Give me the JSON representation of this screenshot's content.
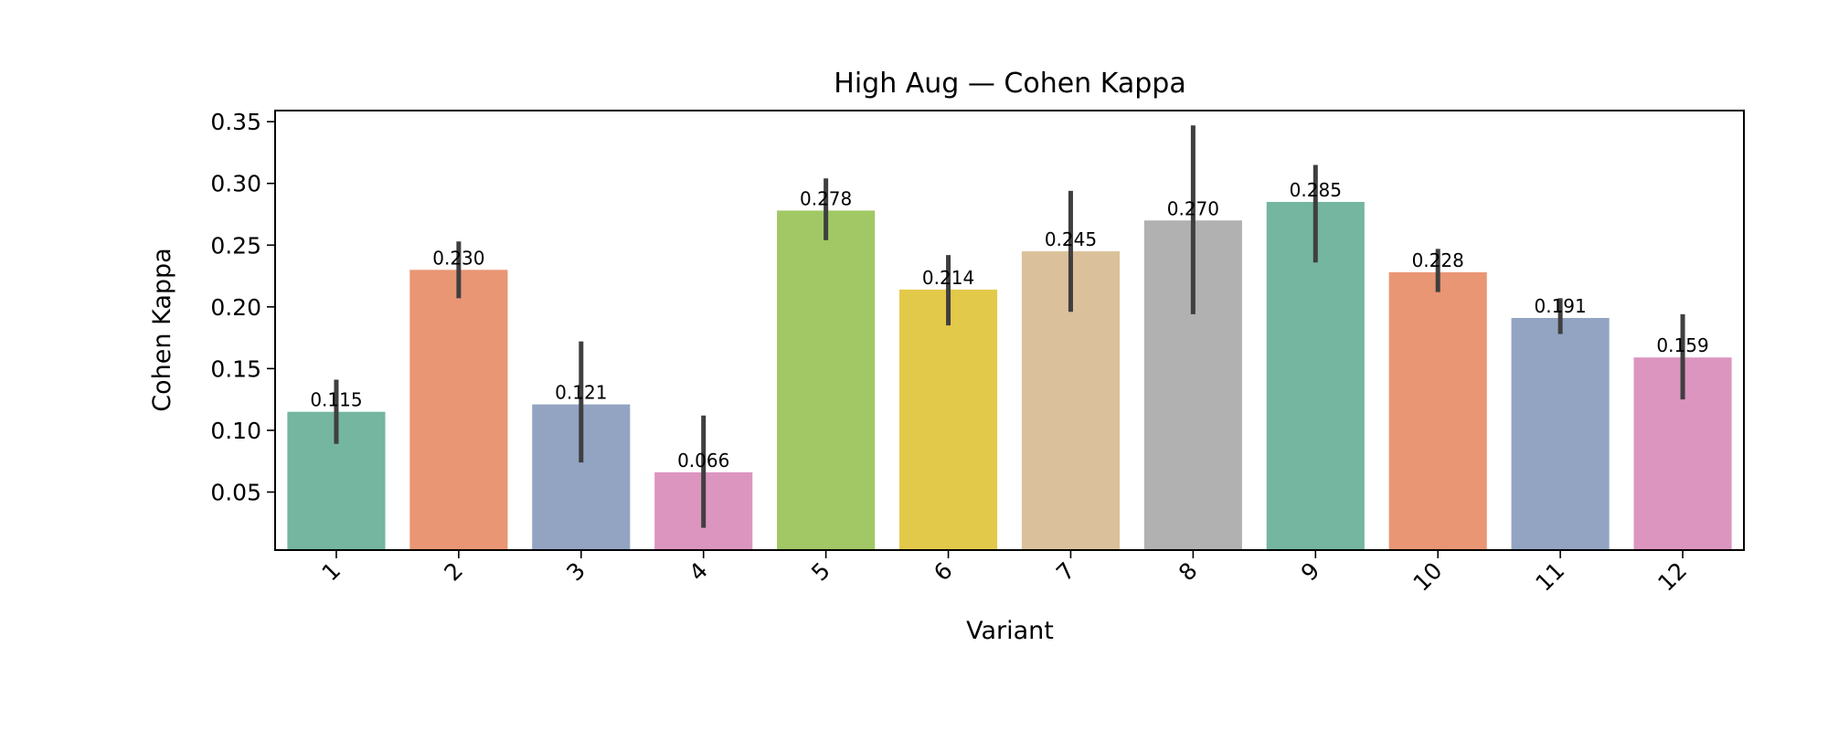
{
  "chart_data": {
    "type": "bar",
    "title": "High Aug — Cohen Kappa",
    "xlabel": "Variant",
    "ylabel": "Cohen Kappa",
    "categories": [
      "1",
      "2",
      "3",
      "4",
      "5",
      "6",
      "7",
      "8",
      "9",
      "10",
      "11",
      "12"
    ],
    "values": [
      0.115,
      0.23,
      0.121,
      0.066,
      0.278,
      0.214,
      0.245,
      0.27,
      0.285,
      0.228,
      0.191,
      0.159
    ],
    "value_labels": [
      "0.115",
      "0.230",
      "0.121",
      "0.066",
      "0.278",
      "0.214",
      "0.245",
      "0.270",
      "0.285",
      "0.228",
      "0.191",
      "0.159"
    ],
    "error_low": [
      0.089,
      0.207,
      0.074,
      0.021,
      0.254,
      0.185,
      0.196,
      0.194,
      0.236,
      0.212,
      0.178,
      0.125
    ],
    "error_high": [
      0.141,
      0.253,
      0.172,
      0.112,
      0.304,
      0.242,
      0.294,
      0.347,
      0.315,
      0.247,
      0.207,
      0.194
    ],
    "colors": [
      "#74b6a0",
      "#e99675",
      "#93a4c3",
      "#dc95bf",
      "#a1c864",
      "#e3c94a",
      "#dac19b",
      "#b1b1b1",
      "#74b6a0",
      "#e99675",
      "#93a4c3",
      "#dc95bf"
    ],
    "error_color": "#3f3f3f",
    "ylim": [
      0.003,
      0.359
    ],
    "yticks": [
      0.05,
      0.1,
      0.15,
      0.2,
      0.25,
      0.3,
      0.35
    ],
    "ytick_labels": [
      "0.05",
      "0.10",
      "0.15",
      "0.20",
      "0.25",
      "0.30",
      "0.35"
    ],
    "xtick_rotation": 45,
    "grid": false,
    "legend": "none"
  }
}
